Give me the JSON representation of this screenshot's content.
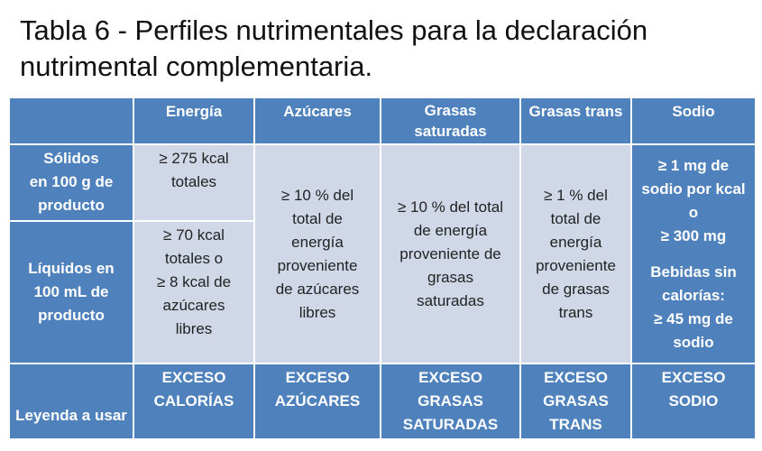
{
  "title": [
    "Tabla 6 - Perfiles nutrimentales para la declaración",
    "nutrimental complementaria."
  ],
  "table": {
    "columns": [
      [
        "Energía"
      ],
      [
        "Azúcares"
      ],
      [
        "Grasas",
        "saturadas"
      ],
      [
        "Grasas trans"
      ],
      [
        "Sodio"
      ]
    ],
    "row_labels": [
      [
        "Sólidos",
        "en 100 g de",
        "producto"
      ],
      [
        "Líquidos en",
        "100 mL de",
        "producto"
      ]
    ],
    "energia": [
      [
        "≥ 275 kcal",
        "totales"
      ],
      [
        "≥ 70 kcal",
        "totales o",
        "≥ 8 kcal de",
        "azúcares",
        "libres"
      ]
    ],
    "criteria": [
      [
        "≥ 10 % del",
        "total de",
        "energía",
        "proveniente",
        "de azúcares",
        "libres"
      ],
      [
        "≥ 10 % del total",
        "de energía",
        "proveniente de",
        "grasas",
        "saturadas"
      ],
      [
        "≥ 1 % del",
        "total de",
        "energía",
        "proveniente",
        "de grasas",
        "trans"
      ],
      [
        [
          "≥ 1 mg de",
          "sodio por kcal",
          "o",
          "≥ 300 mg"
        ],
        [
          "Bebidas sin",
          "calorías:",
          "≥ 45 mg de",
          "sodio"
        ]
      ]
    ],
    "legend_label": "Leyenda a usar",
    "legends": [
      [
        "EXCESO",
        "CALORÍAS"
      ],
      [
        "EXCESO",
        "AZÚCARES"
      ],
      [
        "EXCESO",
        "GRASAS",
        "SATURADAS"
      ],
      [
        "EXCESO",
        "GRASAS",
        "TRANS"
      ],
      [
        "EXCESO",
        "SODIO"
      ]
    ]
  }
}
